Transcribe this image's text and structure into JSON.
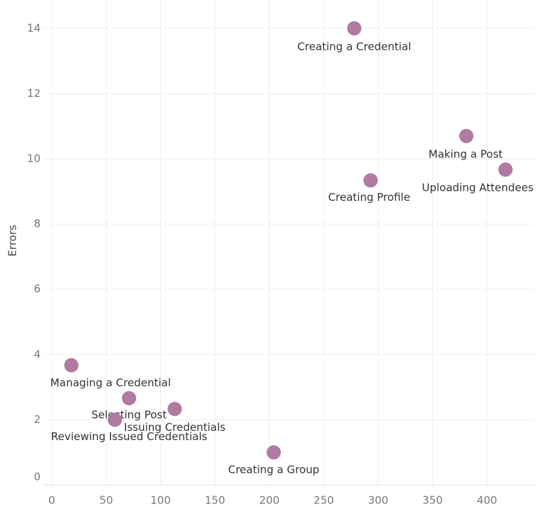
{
  "chart_data": {
    "type": "scatter",
    "y_label": "Errors",
    "color": "#b07aa1",
    "grid": true,
    "xlim": [
      -7,
      444
    ],
    "ylim": [
      0,
      14.87
    ],
    "xticks": [
      0,
      50,
      100,
      150,
      200,
      250,
      300,
      350,
      400
    ],
    "yticks": [
      0,
      2,
      4,
      6,
      8,
      10,
      12,
      14
    ],
    "labels": [
      "Creating a Credential",
      "Making a Post",
      "Uploading Attendees",
      "Creating Profile",
      "Managing a Credential",
      "Selecting Post",
      "Issuing Credentials",
      "Reviewing Issued Credentials",
      "Creating a Group"
    ],
    "x": [
      278,
      381,
      417,
      293,
      18,
      71,
      113,
      58,
      204
    ],
    "values": [
      14.0,
      10.7,
      9.67,
      9.34,
      3.67,
      2.66,
      2.33,
      2.0,
      1.0
    ]
  }
}
